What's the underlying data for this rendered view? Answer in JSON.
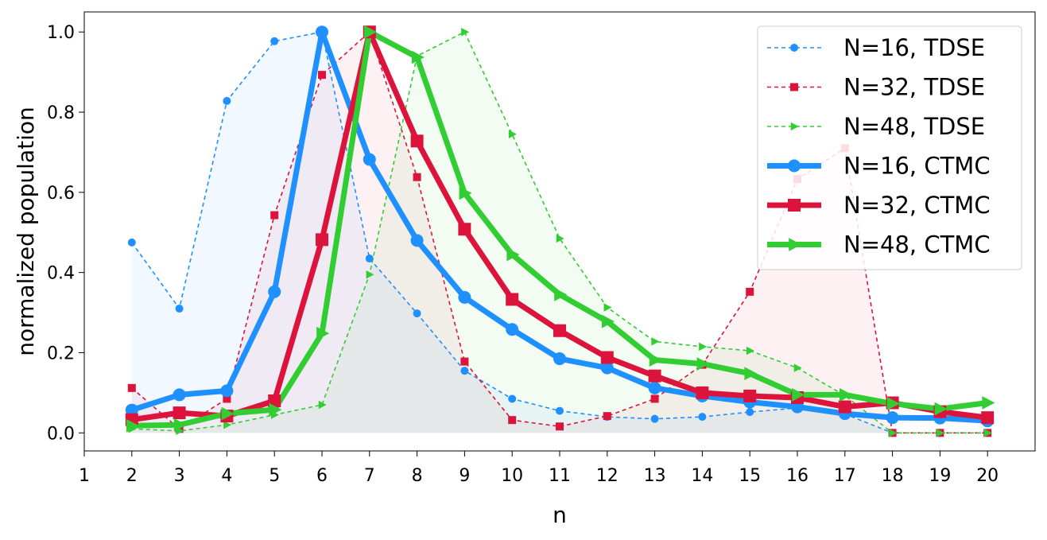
{
  "chart_data": {
    "type": "line",
    "title": "",
    "xlabel": "n",
    "ylabel": "normalized population",
    "xlim": [
      1,
      21
    ],
    "ylim": [
      -0.045,
      1.05
    ],
    "x_ticks": [
      1,
      2,
      3,
      4,
      5,
      6,
      7,
      8,
      9,
      10,
      11,
      12,
      13,
      14,
      15,
      16,
      17,
      18,
      19,
      20
    ],
    "y_ticks": [
      0.0,
      0.2,
      0.4,
      0.6,
      0.8,
      1.0
    ],
    "y_tick_labels": [
      "0.0",
      "0.2",
      "0.4",
      "0.6",
      "0.8",
      "1.0"
    ],
    "grid": false,
    "legend_position": "top-right",
    "x": [
      2,
      3,
      4,
      5,
      6,
      7,
      8,
      9,
      10,
      11,
      12,
      13,
      14,
      15,
      16,
      17,
      18,
      19,
      20
    ],
    "series": [
      {
        "name": "N=16, TDSE",
        "method": "TDSE",
        "color": "#1e90ff",
        "marker": "circle",
        "style": "dashed",
        "filled": true,
        "values": [
          0.475,
          0.31,
          0.828,
          0.977,
          1.0,
          0.435,
          0.298,
          0.155,
          0.085,
          0.055,
          0.04,
          0.035,
          0.04,
          0.052,
          0.062,
          0.047,
          0.0,
          0.0,
          0.0
        ]
      },
      {
        "name": "N=32, TDSE",
        "method": "TDSE",
        "color": "#dc143c",
        "marker": "square",
        "style": "dashed",
        "filled": true,
        "values": [
          0.112,
          0.01,
          0.085,
          0.543,
          0.893,
          1.0,
          0.638,
          0.178,
          0.032,
          0.016,
          0.042,
          0.085,
          0.17,
          0.352,
          0.633,
          0.71,
          0.0,
          0.0,
          0.0
        ]
      },
      {
        "name": "N=48, TDSE",
        "method": "TDSE",
        "color": "#32cd32",
        "marker": "triangle-right",
        "style": "dashed",
        "filled": true,
        "values": [
          0.01,
          0.005,
          0.02,
          0.045,
          0.07,
          0.395,
          0.94,
          1.0,
          0.745,
          0.485,
          0.313,
          0.228,
          0.215,
          0.205,
          0.162,
          0.093,
          0.0,
          0.0,
          0.0
        ]
      },
      {
        "name": "N=16, CTMC",
        "method": "CTMC",
        "color": "#1e90ff",
        "marker": "circle",
        "style": "solid",
        "filled": false,
        "values": [
          0.057,
          0.095,
          0.105,
          0.352,
          1.0,
          0.682,
          0.48,
          0.338,
          0.258,
          0.185,
          0.162,
          0.112,
          0.092,
          0.077,
          0.065,
          0.048,
          0.038,
          0.037,
          0.03
        ]
      },
      {
        "name": "N=32, CTMC",
        "method": "CTMC",
        "color": "#dc143c",
        "marker": "square",
        "style": "solid",
        "filled": false,
        "values": [
          0.033,
          0.05,
          0.042,
          0.08,
          0.482,
          1.0,
          0.728,
          0.508,
          0.333,
          0.255,
          0.188,
          0.142,
          0.1,
          0.092,
          0.088,
          0.065,
          0.075,
          0.053,
          0.038
        ]
      },
      {
        "name": "N=48, CTMC",
        "method": "CTMC",
        "color": "#32cd32",
        "marker": "triangle-right",
        "style": "solid",
        "filled": false,
        "values": [
          0.018,
          0.02,
          0.048,
          0.058,
          0.248,
          1.0,
          0.937,
          0.598,
          0.445,
          0.345,
          0.278,
          0.182,
          0.172,
          0.148,
          0.095,
          0.095,
          0.073,
          0.06,
          0.075
        ]
      }
    ]
  }
}
